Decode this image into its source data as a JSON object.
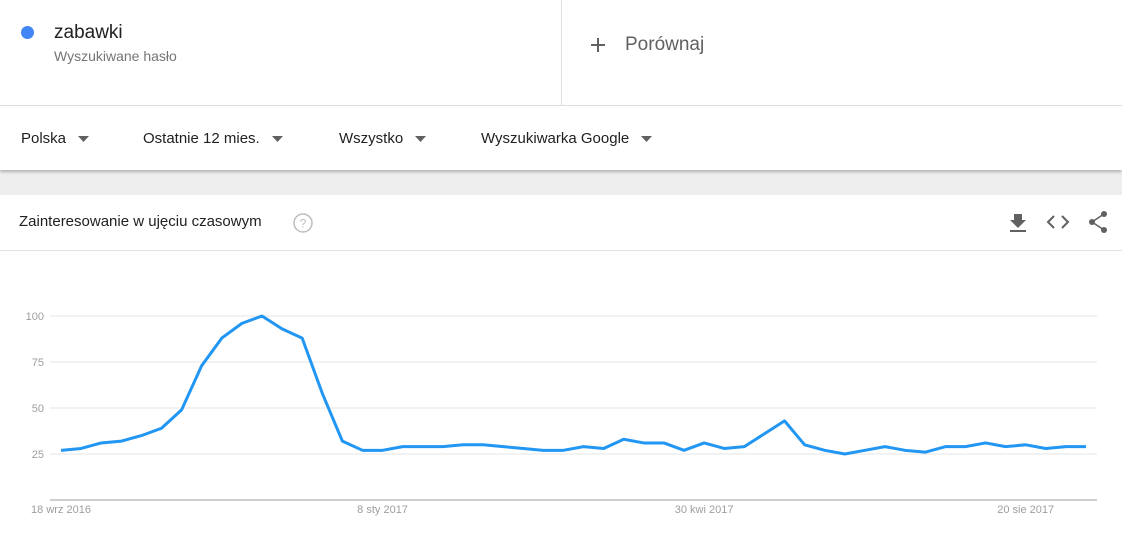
{
  "header": {
    "term": {
      "name": "zabawki",
      "type": "Wyszukiwane hasło"
    },
    "compare": "Porównaj"
  },
  "filters": [
    "Polska",
    "Ostatnie 12 mies.",
    "Wszystko",
    "Wyszukiwarka Google"
  ],
  "chart_data": {
    "type": "line",
    "title": "Zainteresowanie w ujęciu czasowym",
    "categories": [
      "18 wrz 2016",
      null,
      null,
      null,
      null,
      null,
      null,
      null,
      null,
      null,
      null,
      null,
      null,
      null,
      null,
      null,
      "8 sty 2017",
      null,
      null,
      null,
      null,
      null,
      null,
      null,
      null,
      null,
      null,
      null,
      null,
      null,
      null,
      null,
      "30 kwi 2017",
      null,
      null,
      null,
      null,
      null,
      null,
      null,
      null,
      null,
      null,
      null,
      null,
      null,
      null,
      null,
      "20 sie 2017",
      null,
      null,
      null
    ],
    "series": [
      {
        "name": "zabawki",
        "color": "#2196f3",
        "values": [
          27,
          28,
          31,
          32,
          35,
          39,
          49,
          73,
          88,
          96,
          100,
          93,
          88,
          58,
          32,
          27,
          27,
          29,
          29,
          29,
          30,
          30,
          29,
          28,
          27,
          27,
          29,
          28,
          33,
          31,
          31,
          27,
          31,
          28,
          29,
          36,
          43,
          30,
          27,
          25,
          27,
          29,
          27,
          26,
          29,
          29,
          31,
          29,
          30,
          28,
          29,
          29
        ]
      }
    ],
    "ylim": [
      0,
      100
    ],
    "yticks": [
      25,
      50,
      75,
      100
    ],
    "grid": true
  }
}
